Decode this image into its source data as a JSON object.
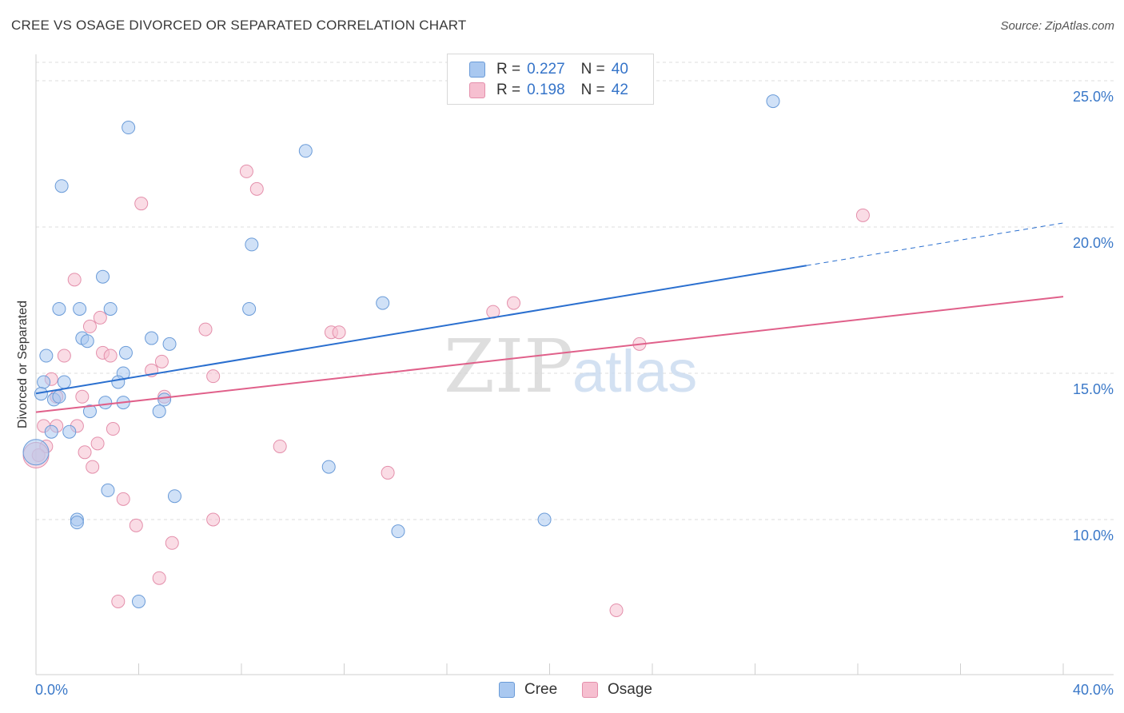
{
  "title": "CREE VS OSAGE DIVORCED OR SEPARATED CORRELATION CHART",
  "source": "Source: ZipAtlas.com",
  "watermark": {
    "part1": "ZIP",
    "part2": "atlas"
  },
  "legend": {
    "r_label": "R =",
    "n_label": "N =",
    "entries": [
      {
        "name": "Cree",
        "r": "0.227",
        "n": "40"
      },
      {
        "name": "Osage",
        "r": "0.198",
        "n": "42"
      }
    ]
  },
  "colors": {
    "cree_fill": "#a9c8f0",
    "cree_stroke": "#6a9bd8",
    "cree_line": "#2a6fcf",
    "osage_fill": "#f6bfd0",
    "osage_stroke": "#e48fab",
    "osage_line": "#e0608a",
    "grid": "#dcdcdc",
    "tick_label": "#3a78c8"
  },
  "chart_data": {
    "type": "scatter",
    "title": "CREE VS OSAGE DIVORCED OR SEPARATED CORRELATION CHART",
    "xlabel": "",
    "ylabel": "Divorced or Separated",
    "xlim": [
      0,
      40
    ],
    "ylim": [
      4.7,
      25.9
    ],
    "x_tick_labels": [
      {
        "value": 0,
        "label": "0.0%"
      },
      {
        "value": 40,
        "label": "40.0%"
      }
    ],
    "y_tick_labels": [
      {
        "value": 10,
        "label": "10.0%"
      },
      {
        "value": 15,
        "label": "15.0%"
      },
      {
        "value": 20,
        "label": "20.0%"
      },
      {
        "value": 25,
        "label": "25.0%"
      }
    ],
    "series": [
      {
        "name": "Cree",
        "points": [
          [
            3.6,
            23.4
          ],
          [
            1.0,
            21.4
          ],
          [
            10.5,
            22.6
          ],
          [
            28.7,
            24.3
          ],
          [
            8.4,
            19.4
          ],
          [
            2.6,
            18.3
          ],
          [
            0.9,
            17.2
          ],
          [
            1.7,
            17.2
          ],
          [
            2.9,
            17.2
          ],
          [
            8.3,
            17.2
          ],
          [
            13.5,
            17.4
          ],
          [
            1.8,
            16.2
          ],
          [
            2.0,
            16.1
          ],
          [
            4.5,
            16.2
          ],
          [
            5.2,
            16.0
          ],
          [
            0.4,
            15.6
          ],
          [
            3.5,
            15.7
          ],
          [
            3.4,
            15.0
          ],
          [
            3.2,
            14.7
          ],
          [
            0.3,
            14.7
          ],
          [
            1.1,
            14.7
          ],
          [
            0.2,
            14.3
          ],
          [
            0.7,
            14.1
          ],
          [
            0.9,
            14.2
          ],
          [
            2.7,
            14.0
          ],
          [
            3.4,
            14.0
          ],
          [
            5.0,
            14.1
          ],
          [
            2.1,
            13.7
          ],
          [
            4.8,
            13.7
          ],
          [
            0.6,
            13.0
          ],
          [
            1.3,
            13.0
          ],
          [
            0.0,
            12.3
          ],
          [
            11.4,
            11.8
          ],
          [
            2.8,
            11.0
          ],
          [
            5.4,
            10.8
          ],
          [
            1.6,
            10.0
          ],
          [
            1.6,
            9.9
          ],
          [
            14.1,
            9.6
          ],
          [
            19.8,
            10.0
          ],
          [
            4.0,
            7.2
          ]
        ],
        "trend": {
          "x": [
            0,
            30
          ],
          "y": [
            14.31,
            18.68
          ],
          "dashed_extension_to_x": 40
        }
      },
      {
        "name": "Osage",
        "points": [
          [
            8.2,
            21.9
          ],
          [
            8.6,
            21.3
          ],
          [
            4.1,
            20.8
          ],
          [
            32.2,
            20.4
          ],
          [
            1.5,
            18.2
          ],
          [
            17.8,
            17.1
          ],
          [
            18.6,
            17.4
          ],
          [
            2.5,
            16.9
          ],
          [
            2.1,
            16.6
          ],
          [
            6.6,
            16.5
          ],
          [
            11.5,
            16.4
          ],
          [
            11.8,
            16.4
          ],
          [
            23.5,
            16.0
          ],
          [
            2.6,
            15.7
          ],
          [
            1.1,
            15.6
          ],
          [
            2.9,
            15.6
          ],
          [
            4.9,
            15.4
          ],
          [
            4.5,
            15.1
          ],
          [
            6.9,
            14.9
          ],
          [
            0.6,
            14.8
          ],
          [
            0.8,
            14.2
          ],
          [
            1.8,
            14.2
          ],
          [
            5.0,
            14.2
          ],
          [
            0.3,
            13.2
          ],
          [
            0.8,
            13.2
          ],
          [
            1.6,
            13.2
          ],
          [
            3.0,
            13.1
          ],
          [
            2.4,
            12.6
          ],
          [
            0.4,
            12.5
          ],
          [
            1.9,
            12.3
          ],
          [
            9.5,
            12.5
          ],
          [
            0.1,
            12.2
          ],
          [
            2.2,
            11.8
          ],
          [
            13.7,
            11.6
          ],
          [
            3.4,
            10.7
          ],
          [
            3.9,
            9.8
          ],
          [
            6.9,
            10.0
          ],
          [
            5.3,
            9.2
          ],
          [
            4.8,
            8.0
          ],
          [
            3.2,
            7.2
          ],
          [
            22.6,
            6.9
          ],
          [
            0.0,
            12.2
          ]
        ],
        "trend": {
          "x": [
            0,
            40
          ],
          "y": [
            13.67,
            17.62
          ]
        }
      }
    ]
  }
}
